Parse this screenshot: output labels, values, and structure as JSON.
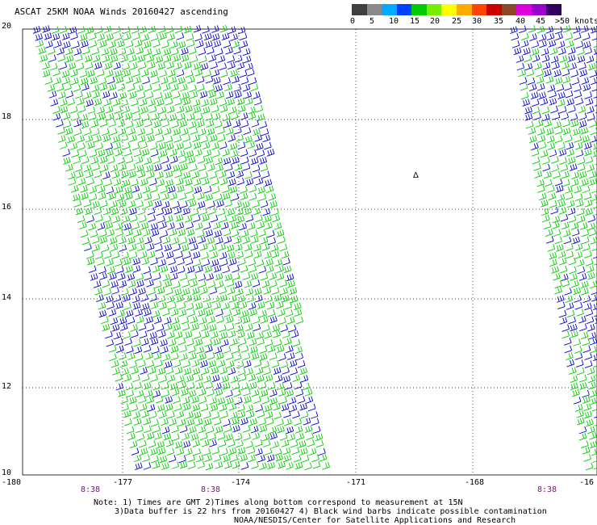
{
  "title": "ASCAT 25KM NOAA Winds 20160427 ascending",
  "colorbar": {
    "colors": [
      "#404040",
      "#8a8a8a",
      "#00aaff",
      "#0040ff",
      "#00cc00",
      "#77ee00",
      "#ffff00",
      "#ffaa00",
      "#ff4400",
      "#cc0000",
      "#8a4a2a",
      "#dd00dd",
      "#9900cc",
      "#300060"
    ],
    "labels": [
      "0",
      "5",
      "10",
      "15",
      "20",
      "25",
      "30",
      "35",
      "40",
      "45",
      ">50 knots"
    ]
  },
  "axes": {
    "lat_labels": [
      "20",
      "18",
      "16",
      "14",
      "12",
      "10"
    ],
    "lon_labels": [
      "-180",
      "-177",
      "-174",
      "-171",
      "-168",
      "-16"
    ]
  },
  "time_labels": [
    "8:38",
    "8:38",
    "8:38"
  ],
  "symbol": "Δ",
  "notes": {
    "line1": "Note: 1) Times are GMT 2)Times along bottom correspond to measurement at 15N",
    "line2": "3)Data buffer is 22 hrs from 20160427 4) Black wind barbs indicate possible contamination",
    "line3": "NOAA/NESDIS/Center for Satellite Applications and Research"
  },
  "barb_colors": {
    "green": "#00cc00",
    "blue": "#0000cc"
  }
}
